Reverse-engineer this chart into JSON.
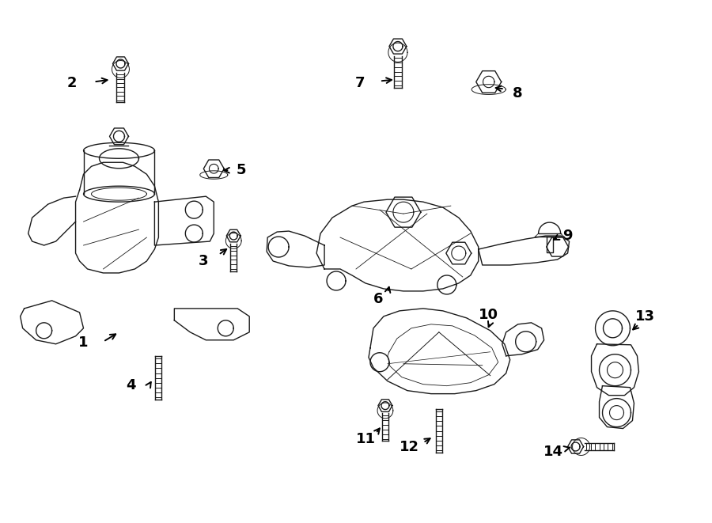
{
  "background_color": "#ffffff",
  "line_color": "#1a1a1a",
  "lw": 1.0,
  "fig_width": 9.0,
  "fig_height": 6.61,
  "dpi": 100
}
